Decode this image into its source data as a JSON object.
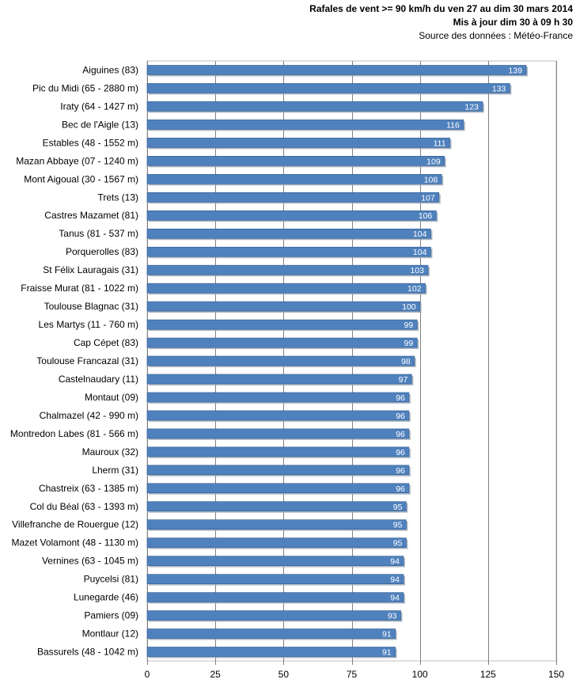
{
  "header": {
    "line1": "Rafales de vent >= 90 km/h du ven 27 au dim 30 mars 2014",
    "line2": "Mis à jour dim 30 à 09 h 30",
    "line3": "Source des données : Météo-France"
  },
  "chart_data": {
    "type": "bar",
    "orientation": "horizontal",
    "title": "",
    "xlabel": "",
    "ylabel": "",
    "xlim": [
      0,
      150
    ],
    "xticks": [
      0,
      25,
      50,
      75,
      100,
      125,
      150
    ],
    "grid": true,
    "legend": "none",
    "bar_color": "#4f81bd",
    "bar_edge_color": "#2e5a8f",
    "categories": [
      "Aiguines (83)",
      "Pic du Midi (65 - 2880 m)",
      "Iraty (64 - 1427 m)",
      "Bec de l'Aigle (13)",
      "Estables (48 - 1552 m)",
      "Mazan Abbaye (07 - 1240 m)",
      "Mont Aigoual (30 - 1567 m)",
      "Trets (13)",
      "Castres Mazamet (81)",
      "Tanus (81 - 537 m)",
      "Porquerolles (83)",
      "St Félix Lauragais (31)",
      "Fraisse Murat (81 - 1022 m)",
      "Toulouse Blagnac (31)",
      "Les Martys (11 - 760 m)",
      "Cap Cépet (83)",
      "Toulouse Francazal (31)",
      "Castelnaudary (11)",
      "Montaut (09)",
      "Chalmazel (42 - 990 m)",
      "Montredon Labes (81 - 566 m)",
      "Mauroux (32)",
      "Lherm (31)",
      "Chastreix (63 - 1385 m)",
      "Col du Béal (63 - 1393 m)",
      "Villefranche de Rouergue (12)",
      "Mazet Volamont (48 - 1130 m)",
      "Vernines (63 - 1045 m)",
      "Puycelsi (81)",
      "Lunegarde (46)",
      "Pamiers (09)",
      "Montlaur (12)",
      "Bassurels (48 - 1042 m)"
    ],
    "values": [
      139,
      133,
      123,
      116,
      111,
      109,
      108,
      107,
      106,
      104,
      104,
      103,
      102,
      100,
      99,
      99,
      98,
      97,
      96,
      96,
      96,
      96,
      96,
      96,
      95,
      95,
      95,
      94,
      94,
      94,
      93,
      91,
      91
    ]
  }
}
